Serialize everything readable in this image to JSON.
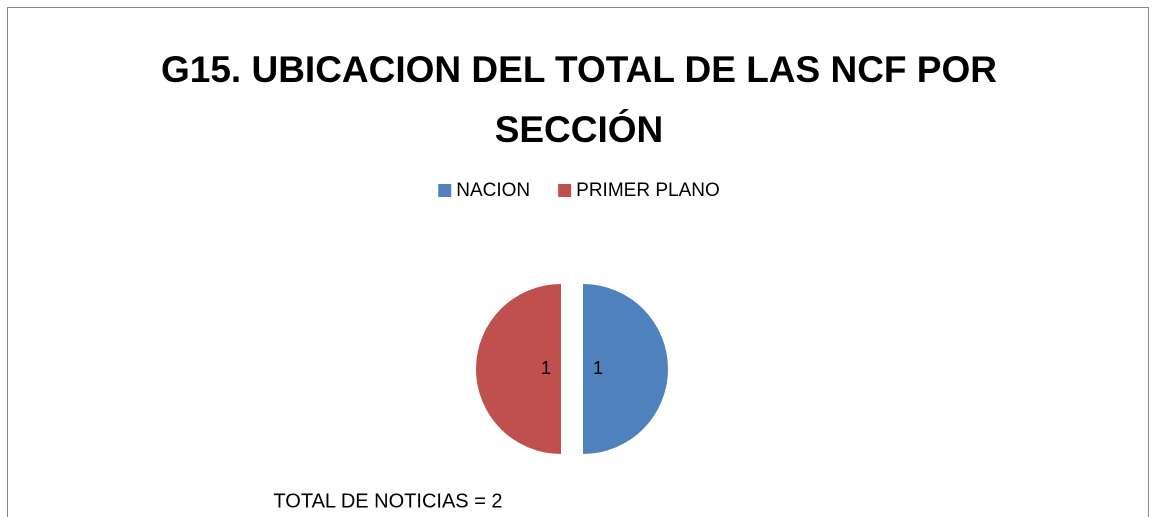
{
  "chart_data": {
    "type": "pie",
    "title": "G15. UBICACION DEL TOTAL DE LAS NCF POR SECCIÓN",
    "categories": [
      "NACION",
      "PRIMER PLANO"
    ],
    "values": [
      1,
      1
    ],
    "colors": [
      "#4f81bd",
      "#c0504d"
    ],
    "legend": "top",
    "annotation": "TOTAL DE NOTICIAS = 2"
  }
}
